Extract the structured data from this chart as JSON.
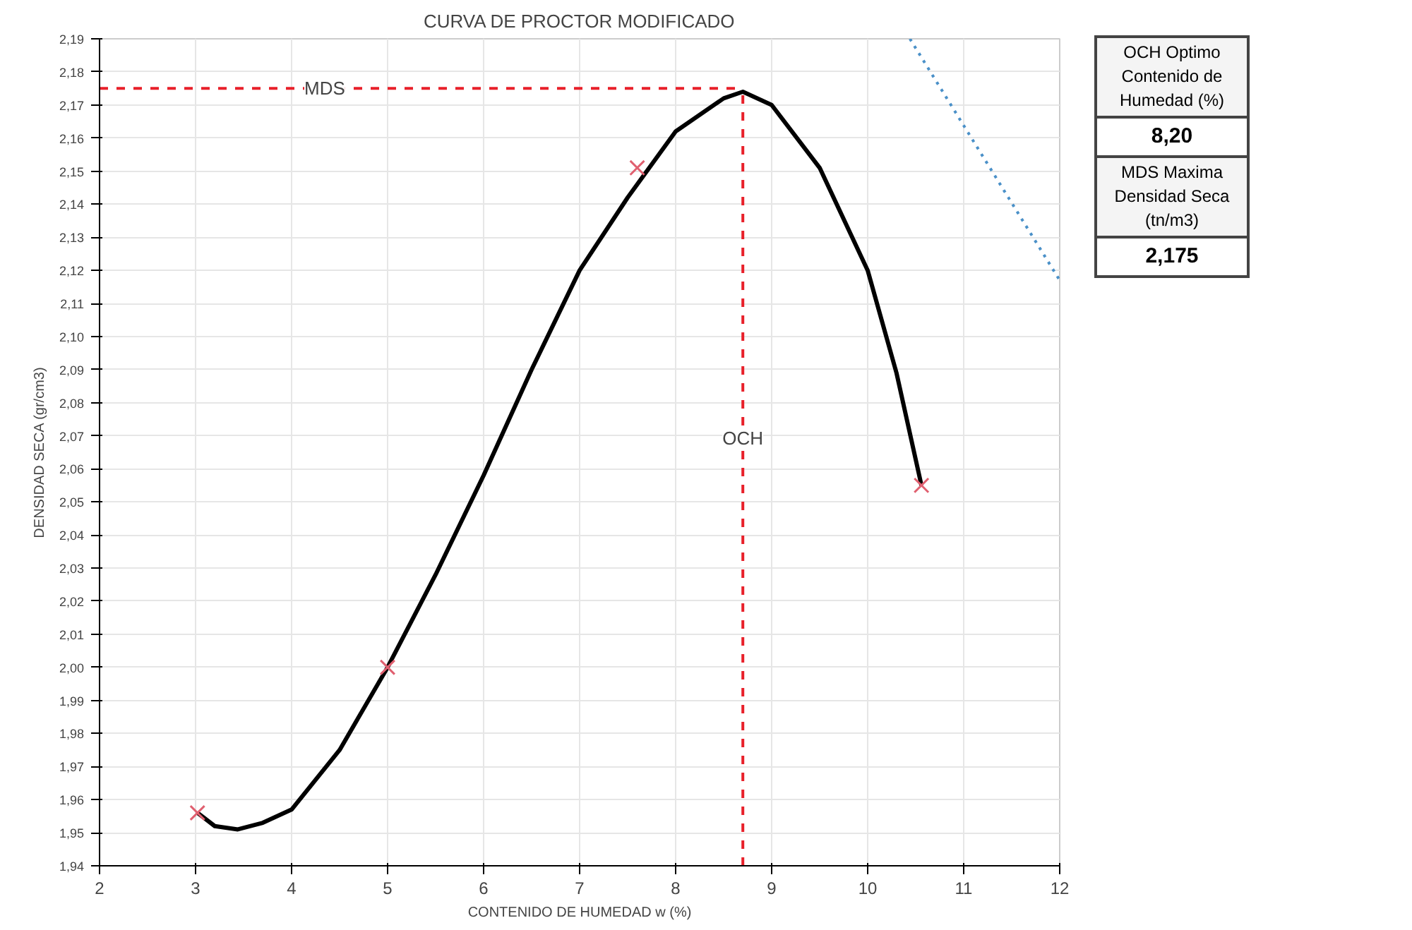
{
  "chart_data": {
    "type": "line",
    "title": "CURVA DE PROCTOR MODIFICADO",
    "xlabel": "CONTENIDO DE HUMEDAD w (%)",
    "ylabel": "DENSIDAD SECA (gr/cm3)",
    "xlim": [
      2,
      12
    ],
    "xticks": [
      2,
      3,
      4,
      5,
      6,
      7,
      8,
      9,
      10,
      11,
      12
    ],
    "ylim": [
      1.94,
      2.19
    ],
    "yticks": [
      {
        "value": 1.94,
        "label": "1,94"
      },
      {
        "value": 1.95,
        "label": "1,95"
      },
      {
        "value": 1.96,
        "label": "1,96"
      },
      {
        "value": 1.97,
        "label": "1,97"
      },
      {
        "value": 1.98,
        "label": "1,98"
      },
      {
        "value": 1.99,
        "label": "1,99"
      },
      {
        "value": 2.0,
        "label": "2,00"
      },
      {
        "value": 2.01,
        "label": "2,01"
      },
      {
        "value": 2.02,
        "label": "2,02"
      },
      {
        "value": 2.03,
        "label": "2,03"
      },
      {
        "value": 2.04,
        "label": "2,04"
      },
      {
        "value": 2.05,
        "label": "2,05"
      },
      {
        "value": 2.06,
        "label": "2,06"
      },
      {
        "value": 2.07,
        "label": "2,07"
      },
      {
        "value": 2.08,
        "label": "2,08"
      },
      {
        "value": 2.09,
        "label": "2,09"
      },
      {
        "value": 2.1,
        "label": "2,10"
      },
      {
        "value": 2.11,
        "label": "2,11"
      },
      {
        "value": 2.12,
        "label": "2,12"
      },
      {
        "value": 2.13,
        "label": "2,13"
      },
      {
        "value": 2.14,
        "label": "2,14"
      },
      {
        "value": 2.15,
        "label": "2,15"
      },
      {
        "value": 2.16,
        "label": "2,16"
      },
      {
        "value": 2.17,
        "label": "2,17"
      },
      {
        "value": 2.18,
        "label": "2,18"
      },
      {
        "value": 2.19,
        "label": "2,19"
      }
    ],
    "grid": true,
    "series": [
      {
        "color": "#000000",
        "x": [
          3.02,
          3.2,
          3.44,
          3.7,
          4.0,
          4.5,
          5.0,
          5.5,
          6.0,
          6.5,
          7.0,
          7.5,
          8.0,
          8.5,
          8.7,
          9.0,
          9.5,
          10.0,
          10.3,
          10.56
        ],
        "values": [
          1.956,
          1.952,
          1.951,
          1.953,
          1.957,
          1.975,
          2.0,
          2.028,
          2.058,
          2.09,
          2.12,
          2.142,
          2.162,
          2.172,
          2.174,
          2.17,
          2.151,
          2.12,
          2.089,
          2.055
        ]
      },
      {
        "type": "scatter",
        "marker": "cross",
        "color": "#e06070",
        "x": [
          3.02,
          5.0,
          7.6,
          10.56
        ],
        "values": [
          1.956,
          2.0,
          2.151,
          2.055
        ]
      },
      {
        "type": "line",
        "line_style": "dotted",
        "color": "#4a90c8",
        "x": [
          10.44,
          12
        ],
        "values": [
          2.19,
          2.117
        ]
      }
    ],
    "ref_lines": [
      {
        "axis": "y",
        "value": 2.175,
        "label": "MDS",
        "color": "#e8202a",
        "line_style": "dashed"
      },
      {
        "axis": "x",
        "value": 8.7,
        "label": "OCH",
        "color": "#e8202a",
        "line_style": "dashed"
      }
    ],
    "annotations": [
      "OCH Optimo Contenido de Humedad (%)",
      "8,20",
      "MDS Maxima Densidad Seca (tn/m3)",
      "2,175"
    ]
  }
}
